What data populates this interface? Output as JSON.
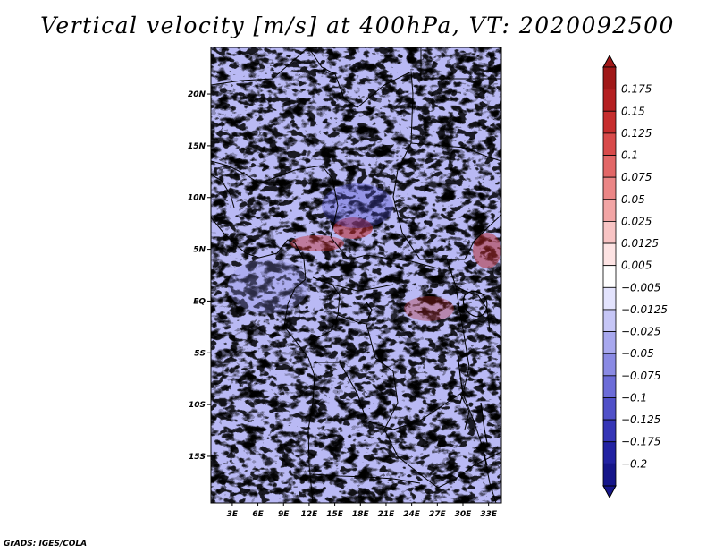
{
  "chart_data": {
    "type": "heatmap",
    "title": "Vertical velocity [m/s] at 400hPa, VT: 2020092500",
    "credit": "GrADS: IGES/COLA",
    "x_tick_labels": [
      "3E",
      "6E",
      "9E",
      "12E",
      "15E",
      "18E",
      "21E",
      "24E",
      "27E",
      "30E",
      "33E"
    ],
    "x_ticks": [
      3,
      6,
      9,
      12,
      15,
      18,
      21,
      24,
      27,
      30,
      33
    ],
    "y_tick_labels": [
      "20N",
      "15N",
      "10N",
      "5N",
      "EQ",
      "5S",
      "10S",
      "15S"
    ],
    "y_ticks": [
      20,
      15,
      10,
      5,
      0,
      -5,
      -10,
      -15
    ],
    "xlim": [
      0.5,
      34.5
    ],
    "ylim": [
      -19.5,
      24.5
    ],
    "colorbar": {
      "labels": [
        "0.175",
        "0.15",
        "0.125",
        "0.1",
        "0.075",
        "0.05",
        "0.025",
        "0.0125",
        "0.005",
        "−0.005",
        "−0.0125",
        "−0.025",
        "−0.05",
        "−0.075",
        "−0.1",
        "−0.125",
        "−0.175",
        "−0.2"
      ],
      "colors": [
        "#a01818",
        "#b41f21",
        "#c62d2d",
        "#d84a4a",
        "#e26767",
        "#eb8686",
        "#f2a5a5",
        "#f8c4c4",
        "#fde3e3",
        "#ffffff",
        "#e3e3fd",
        "#c6c6f6",
        "#a8a8ee",
        "#8a8ae4",
        "#6c6cd8",
        "#5050c8",
        "#3535b6",
        "#2222a2",
        "#16168a"
      ]
    }
  }
}
